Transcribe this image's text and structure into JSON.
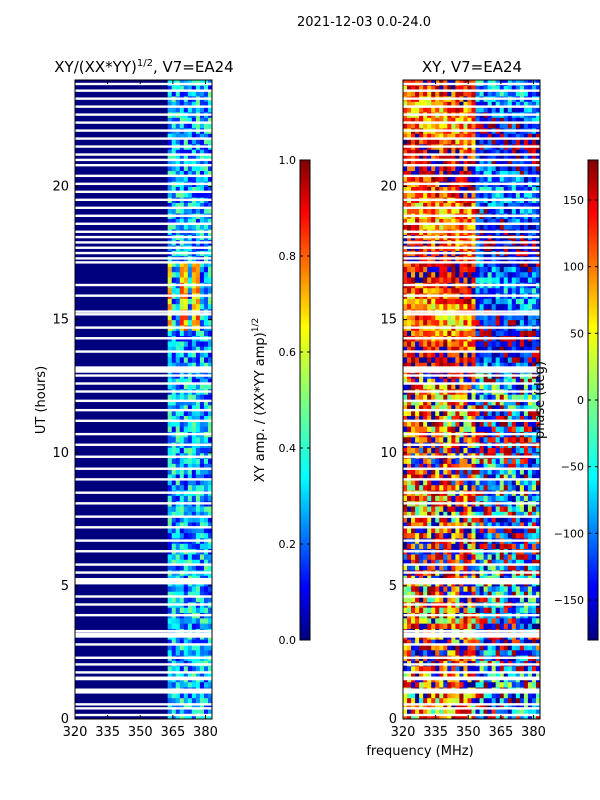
{
  "figure": {
    "suptitle": "2021-12-03 0.0-24.0",
    "shared_xlabel": "frequency (MHz)"
  },
  "colors": {
    "jet": [
      "#00007f",
      "#0000ff",
      "#007fff",
      "#00ffff",
      "#7fff7f",
      "#ffff00",
      "#ff7f00",
      "#ff0000",
      "#7f0000"
    ],
    "background_dark": "#00007f",
    "gap": "#ffffff"
  },
  "chart_data": [
    {
      "type": "heatmap",
      "title_prefix": "XY/(XX*YY)",
      "title_sup": "1/2",
      "title_suffix": ", V7=EA24",
      "xlabel": "",
      "ylabel": "UT (hours)",
      "xlim": [
        320,
        383
      ],
      "ylim": [
        0,
        24
      ],
      "xticks": [
        320,
        335,
        350,
        365,
        380
      ],
      "yticks": [
        0,
        5,
        10,
        15,
        20
      ],
      "colorbar": {
        "label": "XY amp. / (XX*YY amp)",
        "label_sup": "1/2",
        "range": [
          0.0,
          1.0
        ],
        "ticks": [
          "0.0",
          "0.2",
          "0.4",
          "0.6",
          "0.8",
          "1.0"
        ]
      },
      "summary": {
        "low_band_mhz": [
          320,
          361
        ],
        "low_band_value": 0.0,
        "high_band_mhz": [
          361,
          383
        ],
        "high_band_value_range": [
          0.1,
          0.5
        ],
        "bright_channels_mhz": [
          362.5,
          370.5,
          376.5
        ],
        "bright_period_hours": [
          14.5,
          17.0
        ]
      }
    },
    {
      "type": "heatmap",
      "title": "XY, V7=EA24",
      "xlabel": "",
      "ylabel": "",
      "xlim": [
        320,
        383
      ],
      "ylim": [
        0,
        24
      ],
      "xticks": [
        320,
        335,
        350,
        365,
        380
      ],
      "yticks": [
        0,
        5,
        10,
        15,
        20
      ],
      "colorbar": {
        "label": "phase (deg)",
        "range": [
          -180,
          180
        ],
        "ticks": [
          "−150",
          "−100",
          "−50",
          "0",
          "50",
          "100",
          "150"
        ]
      },
      "summary": {
        "noisy_phase_period_hours": [
          0,
          13
        ],
        "structured_phase_period_hours": [
          13,
          24
        ],
        "dominant_phase_low_freq_deg": 120,
        "dominant_phase_high_freq_deg": -120
      }
    }
  ],
  "flagged_hours": [
    0.15,
    0.4,
    0.55,
    1.0,
    1.05,
    1.1,
    1.5,
    1.55,
    1.75,
    2.05,
    2.3,
    2.8,
    3.1,
    3.15,
    3.2,
    3.3,
    3.9,
    4.3,
    4.6,
    5.1,
    5.15,
    5.2,
    5.25,
    5.5,
    5.8,
    6.3,
    6.7,
    7.2,
    7.6,
    8.1,
    8.5,
    9.0,
    9.4,
    9.85,
    10.3,
    10.7,
    11.2,
    11.6,
    11.95,
    12.3,
    12.6,
    12.9,
    13.05,
    13.1,
    13.15,
    13.2,
    13.8,
    14.3,
    14.7,
    15.2,
    15.3,
    15.9,
    16.3,
    17.15,
    17.3,
    17.5,
    17.7,
    17.9,
    18.1,
    18.3,
    18.6,
    18.9,
    19.2,
    19.5,
    19.8,
    20.1,
    20.4,
    20.8,
    21.0,
    21.2,
    21.5,
    21.8,
    22.1,
    22.4,
    22.7,
    23.0,
    23.3,
    23.6,
    23.85
  ]
}
